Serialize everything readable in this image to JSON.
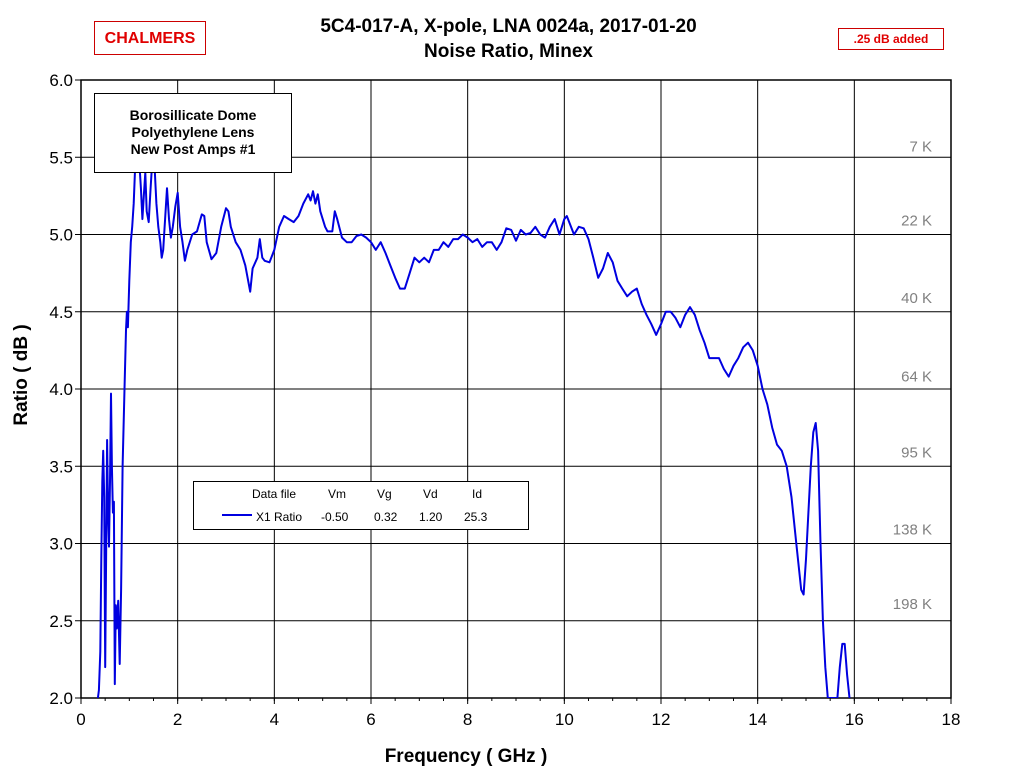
{
  "header": {
    "title_line1": "5C4-017-A,  X-pole,  LNA 0024a,  2017-01-20",
    "title_line2": "Noise Ratio,  Minex",
    "logo_text": "CHALMERS",
    "note": ".25 dB added"
  },
  "infobox": {
    "line1": "Borosillicate Dome",
    "line2": "Polyethylene Lens",
    "line3": "New Post Amps #1"
  },
  "legend": {
    "headers": [
      "Data file",
      "Vm",
      "Vg",
      "Vd",
      "Id"
    ],
    "row": {
      "name": "X1 Ratio",
      "vm": "-0.50",
      "vg": "0.32",
      "vd": "1.20",
      "id": "25.3"
    }
  },
  "colors": {
    "series": "#0000e0",
    "grid": "#000000",
    "temp_labels": "#808080",
    "accent": "#e00000"
  },
  "chart_data": {
    "type": "line",
    "title": "5C4-017-A,  X-pole,  LNA 0024a,  2017-01-20",
    "subtitle": "Noise Ratio,  Minex",
    "xlabel": "Frequency ( GHz )",
    "ylabel": "Ratio  ( dB )",
    "xlim": [
      0,
      18
    ],
    "ylim": [
      2.0,
      6.0
    ],
    "xticks": [
      0,
      2,
      4,
      6,
      8,
      10,
      12,
      14,
      16,
      18
    ],
    "yticks": [
      "2.0",
      "2.5",
      "3.0",
      "3.5",
      "4.0",
      "4.5",
      "5.0",
      "5.5",
      "6.0"
    ],
    "grid": true,
    "temperature_labels": [
      {
        "label": "7 K",
        "y": 5.57
      },
      {
        "label": "22 K",
        "y": 5.09
      },
      {
        "label": "40 K",
        "y": 4.59
      },
      {
        "label": "64 K",
        "y": 4.08
      },
      {
        "label": "95 K",
        "y": 3.59
      },
      {
        "label": "138 K",
        "y": 3.09
      },
      {
        "label": "198 K",
        "y": 2.61
      }
    ],
    "series": [
      {
        "name": "X1 Ratio",
        "points": [
          [
            0.35,
            2.0
          ],
          [
            0.37,
            2.05
          ],
          [
            0.4,
            2.3
          ],
          [
            0.42,
            2.9
          ],
          [
            0.44,
            3.4
          ],
          [
            0.46,
            3.6
          ],
          [
            0.48,
            3.3
          ],
          [
            0.5,
            2.2
          ],
          [
            0.52,
            2.9
          ],
          [
            0.54,
            3.67
          ],
          [
            0.56,
            3.2
          ],
          [
            0.58,
            2.98
          ],
          [
            0.6,
            3.4
          ],
          [
            0.62,
            3.97
          ],
          [
            0.64,
            3.5
          ],
          [
            0.66,
            3.2
          ],
          [
            0.68,
            3.27
          ],
          [
            0.7,
            2.09
          ],
          [
            0.72,
            2.6
          ],
          [
            0.74,
            2.45
          ],
          [
            0.77,
            2.63
          ],
          [
            0.8,
            2.22
          ],
          [
            0.83,
            2.7
          ],
          [
            0.86,
            3.5
          ],
          [
            0.9,
            4.0
          ],
          [
            0.93,
            4.38
          ],
          [
            0.95,
            4.5
          ],
          [
            0.97,
            4.4
          ],
          [
            1.0,
            4.7
          ],
          [
            1.03,
            4.95
          ],
          [
            1.06,
            5.05
          ],
          [
            1.09,
            5.2
          ],
          [
            1.12,
            5.43
          ],
          [
            1.15,
            5.55
          ],
          [
            1.18,
            5.62
          ],
          [
            1.21,
            5.45
          ],
          [
            1.24,
            5.3
          ],
          [
            1.27,
            5.1
          ],
          [
            1.3,
            5.25
          ],
          [
            1.33,
            5.4
          ],
          [
            1.36,
            5.15
          ],
          [
            1.4,
            5.08
          ],
          [
            1.44,
            5.3
          ],
          [
            1.48,
            5.5
          ],
          [
            1.52,
            5.45
          ],
          [
            1.56,
            5.2
          ],
          [
            1.6,
            5.05
          ],
          [
            1.64,
            4.95
          ],
          [
            1.67,
            4.85
          ],
          [
            1.7,
            4.9
          ],
          [
            1.74,
            5.1
          ],
          [
            1.78,
            5.3
          ],
          [
            1.82,
            5.1
          ],
          [
            1.86,
            4.98
          ],
          [
            1.9,
            5.05
          ],
          [
            1.95,
            5.18
          ],
          [
            2.0,
            5.27
          ],
          [
            2.05,
            5.05
          ],
          [
            2.1,
            4.95
          ],
          [
            2.15,
            4.83
          ],
          [
            2.2,
            4.9
          ],
          [
            2.3,
            5.0
          ],
          [
            2.4,
            5.02
          ],
          [
            2.5,
            5.13
          ],
          [
            2.55,
            5.12
          ],
          [
            2.6,
            4.95
          ],
          [
            2.7,
            4.84
          ],
          [
            2.8,
            4.88
          ],
          [
            2.9,
            5.05
          ],
          [
            3.0,
            5.17
          ],
          [
            3.05,
            5.15
          ],
          [
            3.1,
            5.05
          ],
          [
            3.2,
            4.95
          ],
          [
            3.3,
            4.9
          ],
          [
            3.4,
            4.8
          ],
          [
            3.5,
            4.63
          ],
          [
            3.55,
            4.78
          ],
          [
            3.65,
            4.85
          ],
          [
            3.7,
            4.97
          ],
          [
            3.75,
            4.85
          ],
          [
            3.8,
            4.83
          ],
          [
            3.9,
            4.82
          ],
          [
            4.0,
            4.9
          ],
          [
            4.1,
            5.05
          ],
          [
            4.2,
            5.12
          ],
          [
            4.3,
            5.1
          ],
          [
            4.4,
            5.08
          ],
          [
            4.5,
            5.12
          ],
          [
            4.6,
            5.2
          ],
          [
            4.7,
            5.26
          ],
          [
            4.75,
            5.22
          ],
          [
            4.8,
            5.28
          ],
          [
            4.85,
            5.2
          ],
          [
            4.9,
            5.26
          ],
          [
            4.95,
            5.15
          ],
          [
            5.0,
            5.1
          ],
          [
            5.05,
            5.05
          ],
          [
            5.1,
            5.02
          ],
          [
            5.2,
            5.02
          ],
          [
            5.25,
            5.15
          ],
          [
            5.3,
            5.1
          ],
          [
            5.4,
            4.98
          ],
          [
            5.5,
            4.95
          ],
          [
            5.6,
            4.95
          ],
          [
            5.7,
            4.99
          ],
          [
            5.8,
            5.0
          ],
          [
            5.9,
            4.98
          ],
          [
            6.0,
            4.95
          ],
          [
            6.1,
            4.9
          ],
          [
            6.2,
            4.95
          ],
          [
            6.3,
            4.88
          ],
          [
            6.4,
            4.8
          ],
          [
            6.5,
            4.72
          ],
          [
            6.6,
            4.65
          ],
          [
            6.7,
            4.65
          ],
          [
            6.8,
            4.75
          ],
          [
            6.9,
            4.85
          ],
          [
            7.0,
            4.82
          ],
          [
            7.1,
            4.85
          ],
          [
            7.2,
            4.82
          ],
          [
            7.3,
            4.9
          ],
          [
            7.4,
            4.9
          ],
          [
            7.5,
            4.95
          ],
          [
            7.6,
            4.92
          ],
          [
            7.7,
            4.97
          ],
          [
            7.8,
            4.97
          ],
          [
            7.9,
            5.0
          ],
          [
            8.0,
            4.98
          ],
          [
            8.1,
            4.95
          ],
          [
            8.2,
            4.97
          ],
          [
            8.3,
            4.92
          ],
          [
            8.4,
            4.95
          ],
          [
            8.5,
            4.95
          ],
          [
            8.6,
            4.9
          ],
          [
            8.7,
            4.95
          ],
          [
            8.8,
            5.04
          ],
          [
            8.9,
            5.03
          ],
          [
            9.0,
            4.96
          ],
          [
            9.1,
            5.03
          ],
          [
            9.2,
            5.0
          ],
          [
            9.3,
            5.01
          ],
          [
            9.4,
            5.05
          ],
          [
            9.5,
            5.0
          ],
          [
            9.6,
            4.98
          ],
          [
            9.7,
            5.05
          ],
          [
            9.8,
            5.1
          ],
          [
            9.9,
            5.0
          ],
          [
            10.0,
            5.1
          ],
          [
            10.05,
            5.12
          ],
          [
            10.1,
            5.08
          ],
          [
            10.2,
            5.0
          ],
          [
            10.3,
            5.05
          ],
          [
            10.4,
            5.04
          ],
          [
            10.5,
            4.97
          ],
          [
            10.6,
            4.85
          ],
          [
            10.7,
            4.72
          ],
          [
            10.8,
            4.78
          ],
          [
            10.9,
            4.88
          ],
          [
            11.0,
            4.82
          ],
          [
            11.1,
            4.7
          ],
          [
            11.2,
            4.65
          ],
          [
            11.3,
            4.6
          ],
          [
            11.4,
            4.63
          ],
          [
            11.5,
            4.65
          ],
          [
            11.6,
            4.55
          ],
          [
            11.7,
            4.48
          ],
          [
            11.8,
            4.42
          ],
          [
            11.9,
            4.35
          ],
          [
            12.0,
            4.42
          ],
          [
            12.1,
            4.5
          ],
          [
            12.2,
            4.5
          ],
          [
            12.3,
            4.46
          ],
          [
            12.4,
            4.4
          ],
          [
            12.5,
            4.48
          ],
          [
            12.6,
            4.53
          ],
          [
            12.7,
            4.48
          ],
          [
            12.8,
            4.38
          ],
          [
            12.9,
            4.3
          ],
          [
            13.0,
            4.2
          ],
          [
            13.1,
            4.2
          ],
          [
            13.2,
            4.2
          ],
          [
            13.3,
            4.13
          ],
          [
            13.4,
            4.08
          ],
          [
            13.5,
            4.15
          ],
          [
            13.6,
            4.2
          ],
          [
            13.7,
            4.27
          ],
          [
            13.8,
            4.3
          ],
          [
            13.9,
            4.25
          ],
          [
            14.0,
            4.15
          ],
          [
            14.1,
            4.0
          ],
          [
            14.2,
            3.9
          ],
          [
            14.3,
            3.75
          ],
          [
            14.4,
            3.64
          ],
          [
            14.5,
            3.6
          ],
          [
            14.6,
            3.5
          ],
          [
            14.7,
            3.3
          ],
          [
            14.8,
            3.0
          ],
          [
            14.9,
            2.7
          ],
          [
            14.95,
            2.67
          ],
          [
            15.0,
            2.9
          ],
          [
            15.05,
            3.2
          ],
          [
            15.1,
            3.5
          ],
          [
            15.15,
            3.72
          ],
          [
            15.2,
            3.78
          ],
          [
            15.25,
            3.6
          ],
          [
            15.3,
            3.0
          ],
          [
            15.35,
            2.5
          ],
          [
            15.4,
            2.2
          ],
          [
            15.45,
            2.0
          ],
          [
            15.65,
            2.0
          ],
          [
            15.7,
            2.2
          ],
          [
            15.75,
            2.35
          ],
          [
            15.8,
            2.35
          ],
          [
            15.85,
            2.15
          ],
          [
            15.9,
            2.0
          ]
        ]
      }
    ]
  }
}
